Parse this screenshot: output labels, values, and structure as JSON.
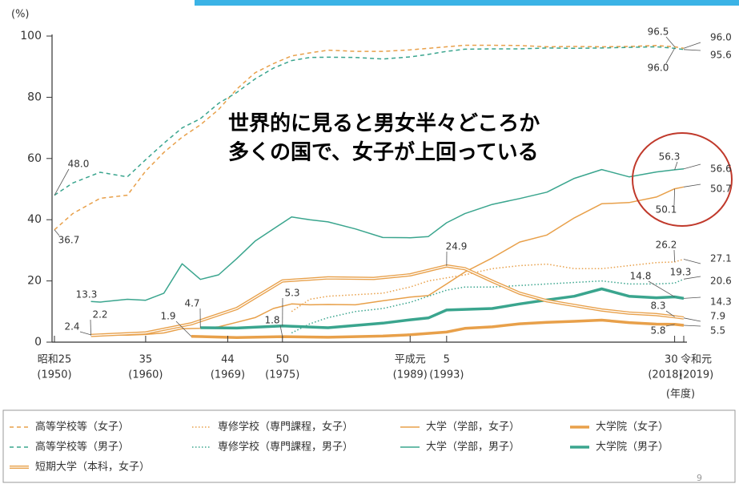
{
  "chart_data": {
    "type": "line",
    "y_unit_label": "(%)",
    "x_unit_label": "(年度)",
    "annotation_text": [
      "世界的に見ると男女半々どころか",
      "多くの国で、女子が上回っている"
    ],
    "page_number": "9",
    "xlim": [
      1950,
      2019
    ],
    "ylim": [
      0,
      100
    ],
    "yticks": [
      0,
      20,
      40,
      60,
      80,
      100
    ],
    "xticks": [
      {
        "value": 1950,
        "label": "昭和25"
      },
      {
        "value": 1960,
        "label": "35"
      },
      {
        "value": 1969,
        "label": "44"
      },
      {
        "value": 1975,
        "label": "50"
      },
      {
        "value": 1989,
        "label": "平成元"
      },
      {
        "value": 1993,
        "label": "5"
      },
      {
        "value": 2018,
        "label": "30"
      },
      {
        "value": 2019,
        "label": "令和元"
      }
    ],
    "xticks_years": [
      {
        "value": 1950,
        "label": "(1950)"
      },
      {
        "value": 1960,
        "label": "(1960)"
      },
      {
        "value": 1969,
        "label": "(1969)"
      },
      {
        "value": 1975,
        "label": "(1975)"
      },
      {
        "value": 1989,
        "label": "(1989)"
      },
      {
        "value": 1993,
        "label": "(1993)"
      },
      {
        "value": 2018,
        "label": "(2018)"
      },
      {
        "value": 2019,
        "label": "(2019)"
      }
    ],
    "series": [
      {
        "name": "高等学校等（女子）",
        "color": "#e8a04a",
        "style": "dashed",
        "x": [
          1950,
          1952,
          1955,
          1958,
          1960,
          1962,
          1964,
          1966,
          1968,
          1970,
          1972,
          1974,
          1976,
          1978,
          1980,
          1983,
          1986,
          1989,
          1991,
          1993,
          1995,
          1998,
          2001,
          2004,
          2007,
          2010,
          2013,
          2016,
          2018,
          2019
        ],
        "values": [
          36.7,
          42,
          47,
          48,
          55.9,
          62,
          67,
          71,
          76,
          82.7,
          88,
          91,
          93.5,
          94.5,
          95.4,
          95,
          95,
          95.5,
          96,
          96.5,
          97,
          97,
          96.9,
          96.5,
          96.6,
          96.5,
          96.6,
          96.9,
          96.5,
          96.0
        ]
      },
      {
        "name": "専修学校（専門課程，女子）",
        "color": "#e8a04a",
        "style": "dotted",
        "x": [
          1976,
          1978,
          1980,
          1983,
          1986,
          1989,
          1991,
          1993,
          1995,
          1998,
          2001,
          2004,
          2007,
          2010,
          2013,
          2016,
          2018,
          2019
        ],
        "values": [
          10,
          14,
          15,
          15.5,
          16,
          18,
          20,
          21,
          22,
          24,
          25,
          25.5,
          24,
          24,
          25,
          26,
          26.2,
          27.1
        ]
      },
      {
        "name": "大学（学部，女子）",
        "color": "#e8a04a",
        "style": "thin",
        "x": [
          1954,
          1958,
          1960,
          1962,
          1964,
          1966,
          1968,
          1970,
          1972,
          1974,
          1976,
          1978,
          1980,
          1983,
          1986,
          1989,
          1991,
          1993,
          1995,
          1998,
          2001,
          2004,
          2007,
          2010,
          2013,
          2016,
          2018,
          2019
        ],
        "values": [
          2.4,
          2.3,
          2.5,
          3,
          4.4,
          4.5,
          5,
          6.5,
          8,
          11,
          12.5,
          12.2,
          12.3,
          12.2,
          13.5,
          14.7,
          15.2,
          19,
          22.9,
          27.5,
          32.7,
          35,
          40.6,
          45.2,
          45.6,
          47.4,
          50.1,
          50.7
        ]
      },
      {
        "name": "大学院（女子）",
        "color": "#e8a04a",
        "style": "thick",
        "x": [
          1965,
          1970,
          1975,
          1980,
          1986,
          1989,
          1993,
          1995,
          1998,
          2001,
          2004,
          2007,
          2010,
          2013,
          2016,
          2018,
          2019
        ],
        "values": [
          1.9,
          1.5,
          1.8,
          1.6,
          2,
          2.4,
          3.3,
          4.5,
          5,
          6,
          6.5,
          6.8,
          7.2,
          6.4,
          5.9,
          5.8,
          5.5
        ]
      },
      {
        "name": "高等学校等（男子）",
        "color": "#3aa58e",
        "style": "dashed",
        "x": [
          1950,
          1952,
          1955,
          1958,
          1960,
          1962,
          1964,
          1966,
          1968,
          1970,
          1972,
          1974,
          1976,
          1978,
          1980,
          1983,
          1986,
          1989,
          1991,
          1993,
          1995,
          1998,
          2001,
          2004,
          2007,
          2010,
          2013,
          2016,
          2018,
          2019
        ],
        "values": [
          48.0,
          52,
          55.5,
          54,
          59.6,
          65,
          70,
          73,
          78,
          81.6,
          86,
          89.5,
          92,
          93,
          93.1,
          93,
          92.5,
          93.2,
          94,
          95,
          95.7,
          95.8,
          95.8,
          96.1,
          96,
          96.1,
          96.3,
          96.5,
          96.0,
          95.6
        ]
      },
      {
        "name": "専修学校（専門課程，男子）",
        "color": "#3aa58e",
        "style": "dotted",
        "x": [
          1976,
          1978,
          1980,
          1983,
          1986,
          1989,
          1991,
          1993,
          1995,
          1998,
          2001,
          2004,
          2007,
          2010,
          2013,
          2016,
          2018,
          2019
        ],
        "values": [
          3,
          6,
          8,
          10,
          11,
          13,
          15,
          17,
          18,
          18,
          18.5,
          19,
          19.5,
          20,
          19,
          19,
          19.3,
          20.6
        ]
      },
      {
        "name": "大学（学部，男子）",
        "color": "#3aa58e",
        "style": "thin",
        "x": [
          1954,
          1955,
          1958,
          1960,
          1962,
          1964,
          1966,
          1968,
          1970,
          1972,
          1974,
          1976,
          1978,
          1980,
          1983,
          1986,
          1989,
          1991,
          1993,
          1995,
          1998,
          2001,
          2004,
          2007,
          2010,
          2013,
          2016,
          2018,
          2019
        ],
        "values": [
          13.3,
          13.1,
          14,
          13.7,
          16,
          25.6,
          20.5,
          22,
          27.3,
          33,
          37,
          40.9,
          40,
          39.3,
          37,
          34.2,
          34.1,
          34.5,
          39,
          42,
          45,
          46.9,
          49,
          53.5,
          56.4,
          54,
          55.6,
          56.3,
          56.6
        ]
      },
      {
        "name": "大学院（男子）",
        "color": "#3aa58e",
        "style": "thick",
        "x": [
          1966,
          1970,
          1975,
          1980,
          1986,
          1989,
          1991,
          1993,
          1995,
          1998,
          2001,
          2004,
          2007,
          2010,
          2013,
          2016,
          2018,
          2019
        ],
        "values": [
          4.7,
          4.6,
          5.3,
          4.7,
          6.2,
          7.3,
          7.9,
          10.5,
          10.7,
          11,
          12.5,
          13.8,
          15,
          17.4,
          15,
          14.5,
          14.8,
          14.3
        ]
      },
      {
        "name": "短期大学（本科，女子）",
        "color": "#e8a04a",
        "style": "double",
        "x": [
          1954,
          1960,
          1965,
          1970,
          1975,
          1980,
          1985,
          1989,
          1993,
          1995,
          1998,
          2001,
          2004,
          2007,
          2010,
          2013,
          2016,
          2018,
          2019
        ],
        "values": [
          2.2,
          3,
          6,
          11,
          20,
          21,
          20.8,
          22,
          24.9,
          24,
          19.9,
          16,
          13.5,
          12,
          10.5,
          9.5,
          9,
          8.3,
          7.9
        ]
      }
    ],
    "annotations": [
      {
        "text": "96.5",
        "x": 2018,
        "y": 96.5
      },
      {
        "text": "96.0",
        "x": 2019,
        "y": 96.0
      },
      {
        "text": "95.6",
        "x": 2019,
        "y": 95.6
      },
      {
        "text": "96.0",
        "x": 2018,
        "y": 96.0
      },
      {
        "text": "48.0",
        "x": 1950,
        "y": 48.0
      },
      {
        "text": "36.7",
        "x": 1950,
        "y": 36.7
      },
      {
        "text": "13.3",
        "x": 1954,
        "y": 13.3
      },
      {
        "text": "2.4",
        "x": 1954,
        "y": 2.4
      },
      {
        "text": "2.2",
        "x": 1954,
        "y": 2.2
      },
      {
        "text": "1.9",
        "x": 1965,
        "y": 1.9
      },
      {
        "text": "4.7",
        "x": 1966,
        "y": 4.7
      },
      {
        "text": "5.3",
        "x": 1975,
        "y": 5.3
      },
      {
        "text": "1.8",
        "x": 1975,
        "y": 1.8
      },
      {
        "text": "24.9",
        "x": 1993,
        "y": 24.9
      },
      {
        "text": "56.3",
        "x": 2018,
        "y": 56.3
      },
      {
        "text": "56.6",
        "x": 2019,
        "y": 56.6
      },
      {
        "text": "50.7",
        "x": 2019,
        "y": 50.7
      },
      {
        "text": "50.1",
        "x": 2018,
        "y": 50.1
      },
      {
        "text": "26.2",
        "x": 2018,
        "y": 26.2
      },
      {
        "text": "27.1",
        "x": 2019,
        "y": 27.1
      },
      {
        "text": "19.3",
        "x": 2018,
        "y": 19.3
      },
      {
        "text": "20.6",
        "x": 2019,
        "y": 20.6
      },
      {
        "text": "14.8",
        "x": 2018,
        "y": 14.8
      },
      {
        "text": "14.3",
        "x": 2019,
        "y": 14.3
      },
      {
        "text": "8.3",
        "x": 2018,
        "y": 8.3
      },
      {
        "text": "7.9",
        "x": 2019,
        "y": 7.9
      },
      {
        "text": "5.8",
        "x": 2018,
        "y": 5.8
      },
      {
        "text": "5.5",
        "x": 2019,
        "y": 5.5
      }
    ]
  }
}
